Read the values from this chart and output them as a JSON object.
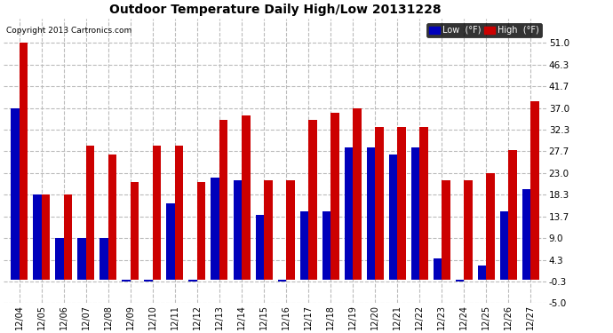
{
  "title": "Outdoor Temperature Daily High/Low 20131228",
  "copyright": "Copyright 2013 Cartronics.com",
  "dates": [
    "12/04",
    "12/05",
    "12/06",
    "12/07",
    "12/08",
    "12/09",
    "12/10",
    "12/11",
    "12/12",
    "12/13",
    "12/14",
    "12/15",
    "12/16",
    "12/17",
    "12/18",
    "12/19",
    "12/20",
    "12/21",
    "12/22",
    "12/23",
    "12/24",
    "12/25",
    "12/26",
    "12/27"
  ],
  "high": [
    51.0,
    18.3,
    18.3,
    29.0,
    27.0,
    21.0,
    29.0,
    29.0,
    21.0,
    34.5,
    35.5,
    21.5,
    21.5,
    34.5,
    36.0,
    37.0,
    33.0,
    33.0,
    33.0,
    21.5,
    21.5,
    23.0,
    28.0,
    38.5
  ],
  "low": [
    37.0,
    18.3,
    9.0,
    9.0,
    9.0,
    -0.3,
    -0.3,
    16.5,
    -0.3,
    22.0,
    21.5,
    14.0,
    -0.3,
    14.7,
    14.7,
    28.5,
    28.5,
    27.0,
    28.5,
    4.7,
    -0.3,
    3.0,
    14.7,
    19.5
  ],
  "high_color": "#cc0000",
  "low_color": "#0000bb",
  "bg_color": "#ffffff",
  "grid_color": "#bbbbbb",
  "ylim_min": -5.0,
  "ylim_max": 56.3,
  "yticks": [
    -5.0,
    -0.3,
    4.3,
    9.0,
    13.7,
    18.3,
    23.0,
    27.7,
    32.3,
    37.0,
    41.7,
    46.3,
    51.0
  ],
  "bar_width": 0.38,
  "legend_low_label": "Low  (°F)",
  "legend_high_label": "High  (°F)"
}
